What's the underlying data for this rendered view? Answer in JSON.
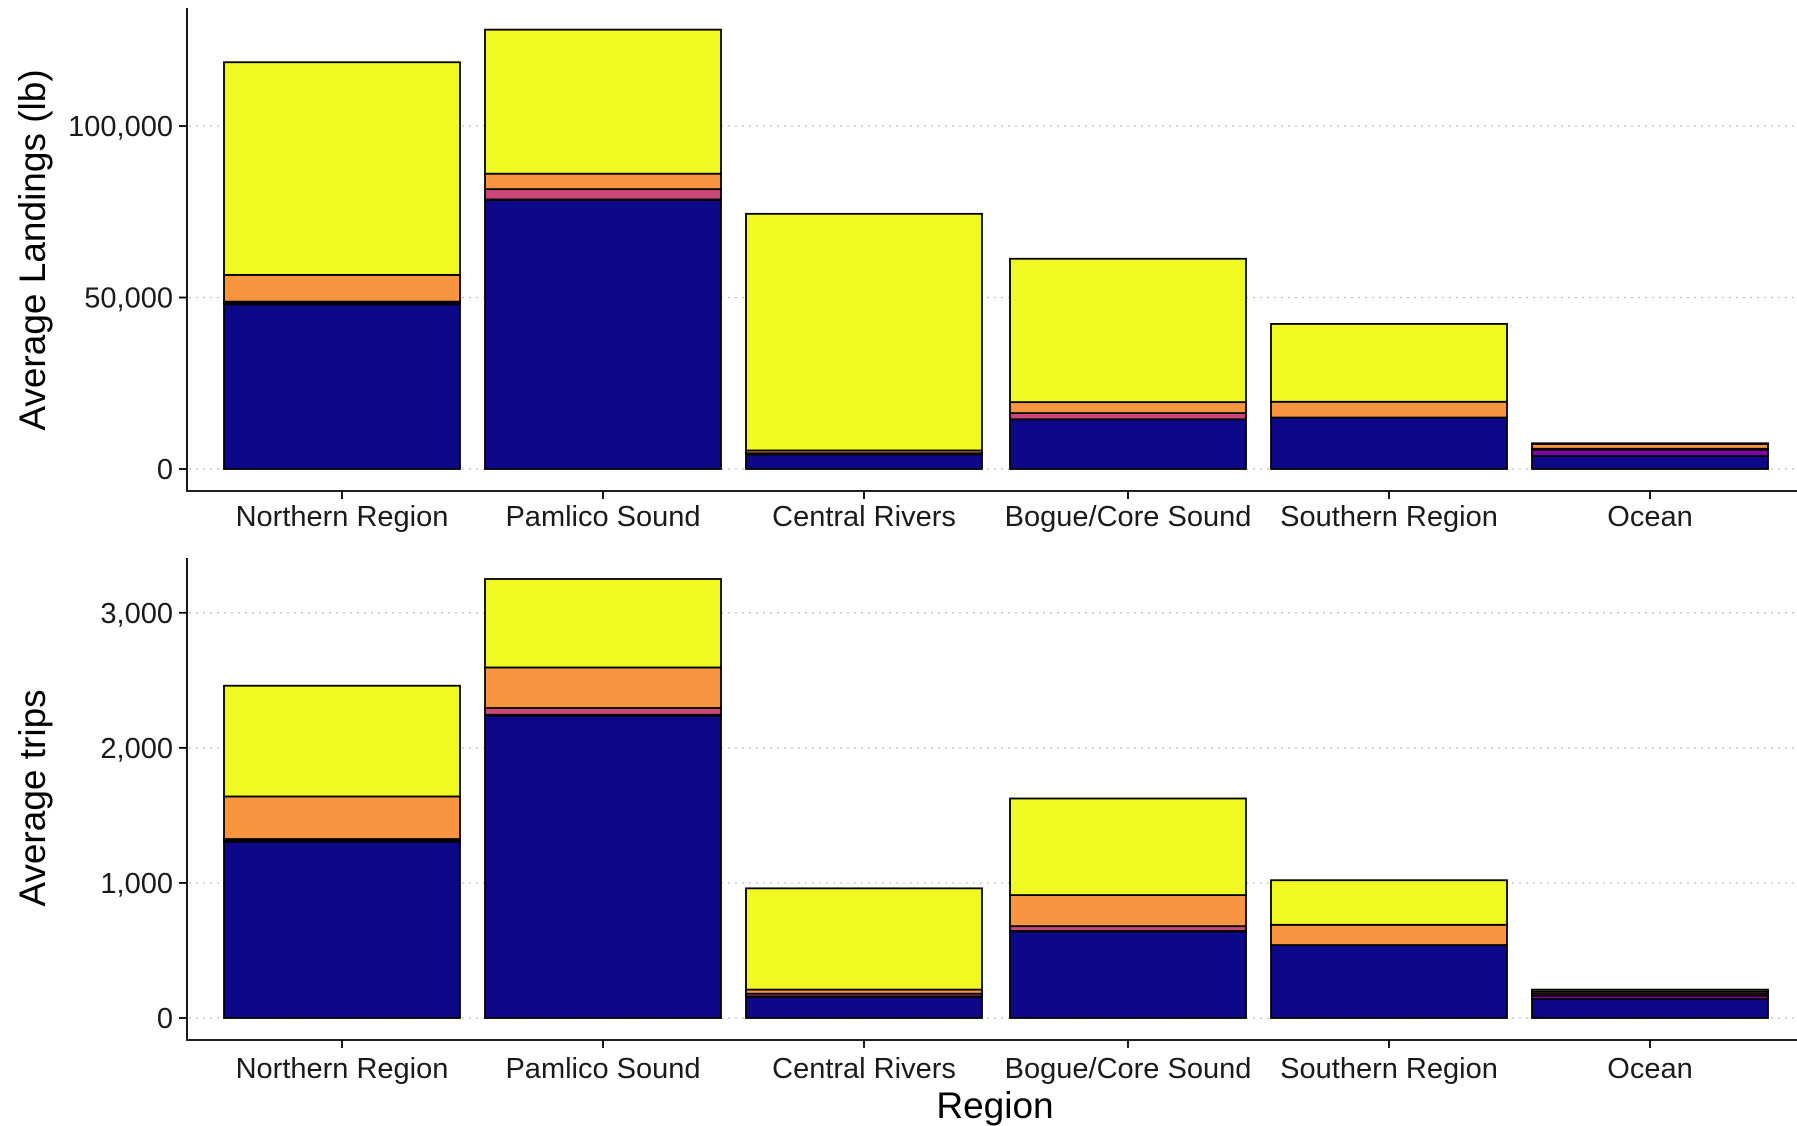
{
  "xlabel": "Region",
  "colors": [
    "#0d0887",
    "#7e03a8",
    "#cc4778",
    "#f89540",
    "#f0f921"
  ],
  "chart_data": [
    {
      "type": "bar",
      "stacked": true,
      "ylabel": "Average Landings (lb)",
      "ylim": [
        0,
        128000
      ],
      "yticks": [
        0,
        50000,
        100000
      ],
      "ytick_labels": [
        "0",
        "50,000",
        "100,000"
      ],
      "grid": "horizontal dotted",
      "categories": [
        "Northern Region",
        "Pamlico Sound",
        "Central Rivers",
        "Bogue/Core Sound",
        "Southern Region",
        "Ocean"
      ],
      "series": [
        {
          "values": [
            48000,
            78500,
            4200,
            14500,
            15000,
            3800
          ]
        },
        {
          "values": [
            300,
            100,
            0,
            0,
            0,
            1800
          ]
        },
        {
          "values": [
            500,
            3000,
            400,
            1800,
            0,
            300
          ]
        },
        {
          "values": [
            7800,
            4500,
            800,
            3200,
            4600,
            1400
          ]
        },
        {
          "values": [
            62000,
            42000,
            69000,
            41800,
            22700,
            200
          ]
        }
      ]
    },
    {
      "type": "bar",
      "stacked": true,
      "ylabel": "Average trips",
      "ylim": [
        0,
        3250
      ],
      "yticks": [
        0,
        1000,
        2000,
        3000
      ],
      "ytick_labels": [
        "0",
        "1,000",
        "2,000",
        "3,000"
      ],
      "grid": "horizontal dotted",
      "categories": [
        "Northern Region",
        "Pamlico Sound",
        "Central Rivers",
        "Bogue/Core Sound",
        "Southern Region",
        "Ocean"
      ],
      "series": [
        {
          "values": [
            1305,
            2240,
            155,
            640,
            540,
            140
          ]
        },
        {
          "values": [
            10,
            5,
            5,
            5,
            0,
            25
          ]
        },
        {
          "values": [
            10,
            50,
            20,
            35,
            0,
            15
          ]
        },
        {
          "values": [
            315,
            300,
            30,
            230,
            150,
            15
          ]
        },
        {
          "values": [
            820,
            655,
            750,
            715,
            330,
            15
          ]
        }
      ]
    }
  ]
}
